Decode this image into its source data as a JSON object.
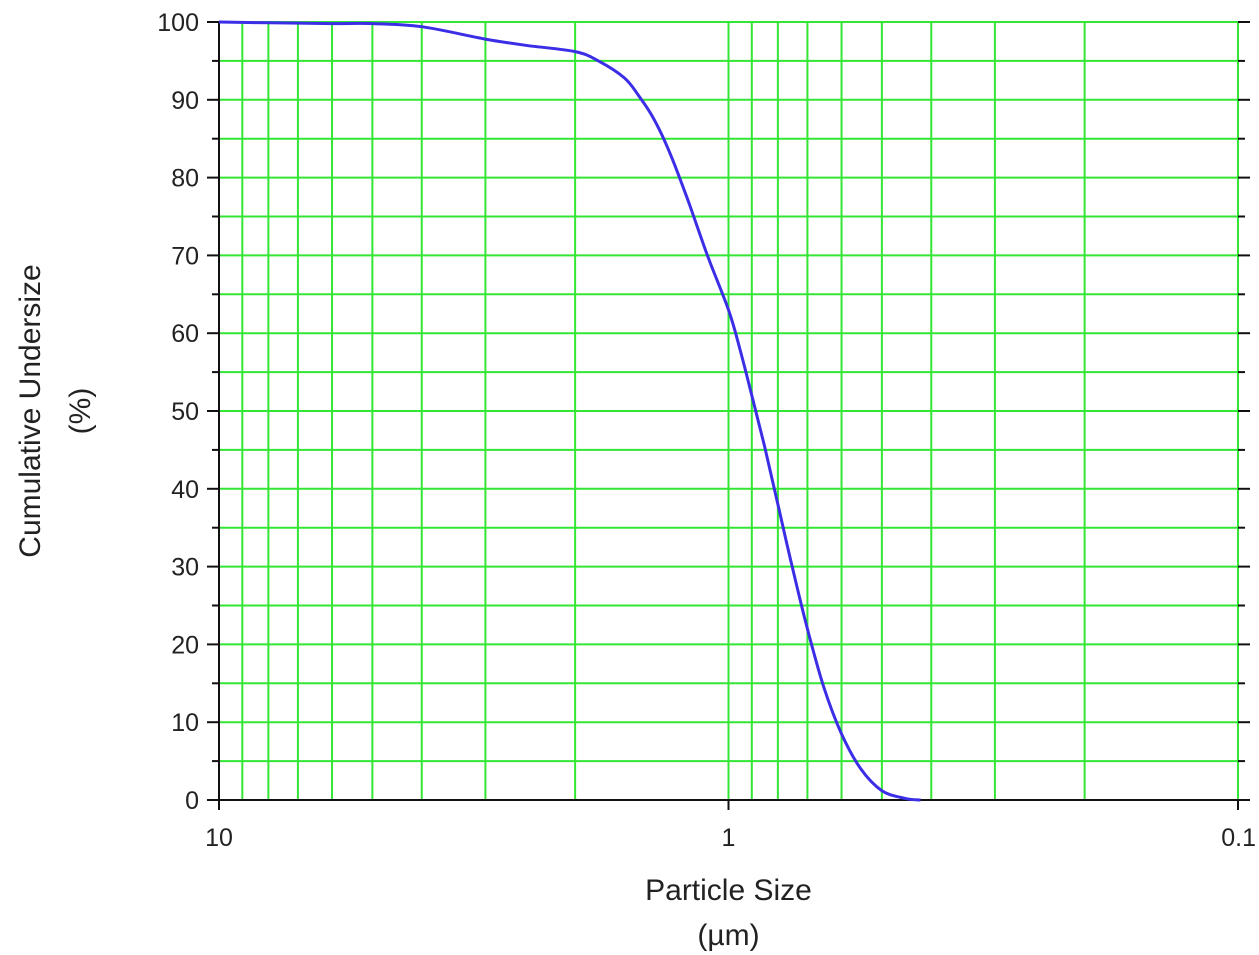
{
  "chart_data": {
    "type": "line",
    "title": "",
    "xlabel": [
      "Particle Size",
      "(µm)"
    ],
    "ylabel": [
      "Cumulative Undersize",
      "(%)"
    ],
    "x_scale": "log",
    "x_reversed": true,
    "xlim": [
      10,
      0.1
    ],
    "ylim": [
      0,
      100
    ],
    "x_ticks": [
      10,
      1,
      0.1
    ],
    "x_tick_labels": [
      "10",
      "1",
      "0.1"
    ],
    "y_ticks": [
      0,
      10,
      20,
      30,
      40,
      50,
      60,
      70,
      80,
      90,
      100
    ],
    "y_tick_labels": [
      "0",
      "10",
      "20",
      "30",
      "40",
      "50",
      "60",
      "70",
      "80",
      "90",
      "100"
    ],
    "grid": true,
    "colors": {
      "grid": "#33e633",
      "line": "#3b2ee6",
      "axis": "#111111"
    },
    "series": [
      {
        "x": [
          10,
          8,
          6,
          5,
          4,
          3,
          2.5,
          2,
          1.8,
          1.6,
          1.5,
          1.4,
          1.3,
          1.2,
          1.1,
          1.0,
          0.95,
          0.9,
          0.85,
          0.8,
          0.75,
          0.7,
          0.65,
          0.6,
          0.55,
          0.5,
          0.45,
          0.42
        ],
        "y": [
          100,
          99.9,
          99.8,
          99.8,
          99.4,
          97.8,
          97.0,
          96.2,
          95.0,
          92.8,
          90.5,
          87.5,
          83.0,
          77.0,
          70.0,
          63.0,
          58.0,
          52.0,
          45.5,
          38.0,
          30.0,
          22.0,
          14.5,
          8.5,
          4.0,
          1.2,
          0.2,
          0
        ]
      }
    ]
  }
}
